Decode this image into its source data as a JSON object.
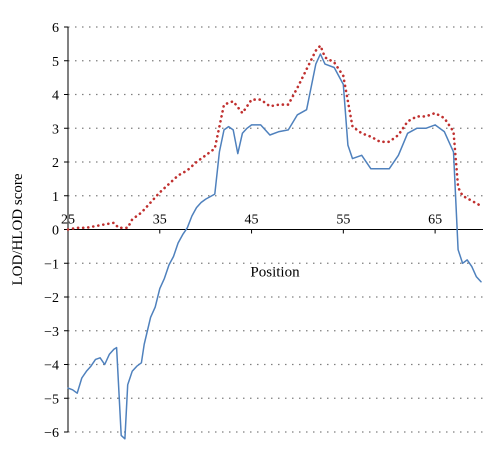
{
  "chart_data": {
    "type": "line",
    "title": "",
    "xlabel": "Position",
    "ylabel": "LOD/HLOD score",
    "xlim": [
      25,
      70
    ],
    "ylim": [
      -6,
      6
    ],
    "x_ticks": [
      25,
      35,
      45,
      55,
      65
    ],
    "x_tick_labels": [
      "25",
      "35",
      "45",
      "55",
      "65"
    ],
    "y_ticks": [
      6,
      5,
      4,
      3,
      2,
      1,
      0,
      -1,
      -2,
      -3,
      -4,
      -5,
      -6
    ],
    "y_tick_labels": [
      "6",
      "5",
      "4",
      "3",
      "2",
      "1",
      "0",
      "−1",
      "−2",
      "−3",
      "−4",
      "−5",
      "−6"
    ],
    "grid": "horizontal dotted",
    "legend": "none",
    "colors": {
      "solid_series": "#4f81bd",
      "dotted_series": "#c0302f"
    },
    "series": [
      {
        "style": "solid",
        "x": [
          25,
          25.5,
          26,
          26.5,
          27,
          27.5,
          28,
          28.5,
          29,
          29.5,
          30,
          30.3,
          30.8,
          31.2,
          31.5,
          32,
          32.5,
          33,
          33.3,
          34,
          34.5,
          35,
          35.5,
          36,
          36.5,
          37,
          37.5,
          38,
          38.5,
          39,
          39.5,
          40,
          41,
          41.5,
          42,
          42.5,
          43,
          43.5,
          44,
          44.5,
          45,
          46,
          47,
          48,
          49,
          50,
          51,
          52,
          52.5,
          53,
          54,
          55,
          55.5,
          56,
          57,
          58,
          59,
          60,
          61,
          62,
          63,
          64,
          65,
          66,
          66.5,
          67,
          67.5,
          68,
          68.5,
          69,
          69.5,
          70
        ],
        "y": [
          -4.7,
          -4.75,
          -4.85,
          -4.4,
          -4.2,
          -4.05,
          -3.85,
          -3.8,
          -4.0,
          -3.7,
          -3.55,
          -3.5,
          -6.1,
          -6.2,
          -4.6,
          -4.2,
          -4.05,
          -3.95,
          -3.4,
          -2.6,
          -2.3,
          -1.75,
          -1.45,
          -1.05,
          -0.8,
          -0.4,
          -0.15,
          0.05,
          0.4,
          0.65,
          0.8,
          0.9,
          1.05,
          2.3,
          2.95,
          3.05,
          2.95,
          2.25,
          2.85,
          3.0,
          3.1,
          3.1,
          2.8,
          2.9,
          2.95,
          3.4,
          3.55,
          4.9,
          5.2,
          4.9,
          4.8,
          4.3,
          2.5,
          2.1,
          2.2,
          1.8,
          1.8,
          1.8,
          2.2,
          2.85,
          3.0,
          3.0,
          3.1,
          2.9,
          2.6,
          2.3,
          -0.6,
          -1.0,
          -0.9,
          -1.1,
          -1.4,
          -1.55
        ]
      },
      {
        "style": "dotted",
        "x": [
          25,
          26,
          27,
          28,
          29,
          30,
          30.5,
          31,
          31.5,
          32,
          33,
          34,
          35,
          36,
          37,
          38,
          39,
          40,
          41,
          42,
          43,
          44,
          45,
          46,
          47,
          48,
          49,
          50,
          51,
          52,
          52.5,
          53,
          54,
          55,
          56,
          57,
          58,
          59,
          60,
          61,
          62,
          63,
          64,
          65,
          66,
          67,
          67.5,
          68,
          69,
          70
        ],
        "y": [
          0,
          0.05,
          0.05,
          0.1,
          0.15,
          0.2,
          0.05,
          0.05,
          0.05,
          0.3,
          0.5,
          0.8,
          1.1,
          1.35,
          1.6,
          1.75,
          2.0,
          2.2,
          2.4,
          3.7,
          3.8,
          3.45,
          3.85,
          3.85,
          3.65,
          3.7,
          3.7,
          4.2,
          4.75,
          5.3,
          5.45,
          5.1,
          4.95,
          4.55,
          3.05,
          2.85,
          2.75,
          2.6,
          2.6,
          2.8,
          3.2,
          3.35,
          3.35,
          3.45,
          3.3,
          2.9,
          1.25,
          1.0,
          0.85,
          0.7
        ]
      }
    ]
  }
}
